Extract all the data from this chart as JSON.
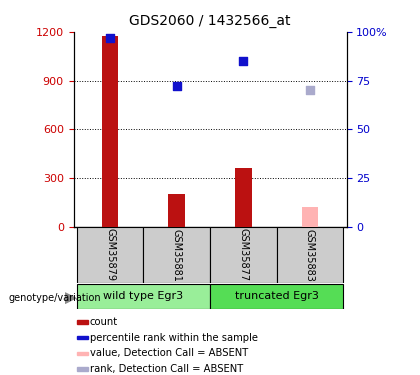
{
  "title": "GDS2060 / 1432566_at",
  "samples": [
    "GSM35879",
    "GSM35881",
    "GSM35877",
    "GSM35883"
  ],
  "bar_values": [
    1175,
    200,
    360,
    null
  ],
  "bar_colors": [
    "#bb1111",
    "#bb1111",
    "#bb1111",
    null
  ],
  "absent_bar_values": [
    null,
    null,
    null,
    120
  ],
  "absent_bar_color": "#ffb3b3",
  "rank_dots": [
    1165,
    870,
    1020,
    null
  ],
  "rank_dot_color": "#1111cc",
  "absent_rank_dots": [
    null,
    null,
    null,
    840
  ],
  "absent_rank_dot_color": "#aaaacc",
  "left_ylim": [
    0,
    1200
  ],
  "left_yticks": [
    0,
    300,
    600,
    900,
    1200
  ],
  "right_ylim": [
    0,
    100
  ],
  "right_yticks": [
    0,
    25,
    50,
    75,
    100
  ],
  "right_yticklabels": [
    "0",
    "25",
    "50",
    "75",
    "100%"
  ],
  "left_tick_color": "#cc0000",
  "right_tick_color": "#0000cc",
  "grid_color": "#000000",
  "grid_values": [
    300,
    600,
    900
  ],
  "group_labels": [
    "wild type Egr3",
    "truncated Egr3"
  ],
  "group_colors": [
    "#99ee99",
    "#55dd55"
  ],
  "sample_box_color": "#cccccc",
  "bar_width": 0.25,
  "title_fontsize": 10
}
